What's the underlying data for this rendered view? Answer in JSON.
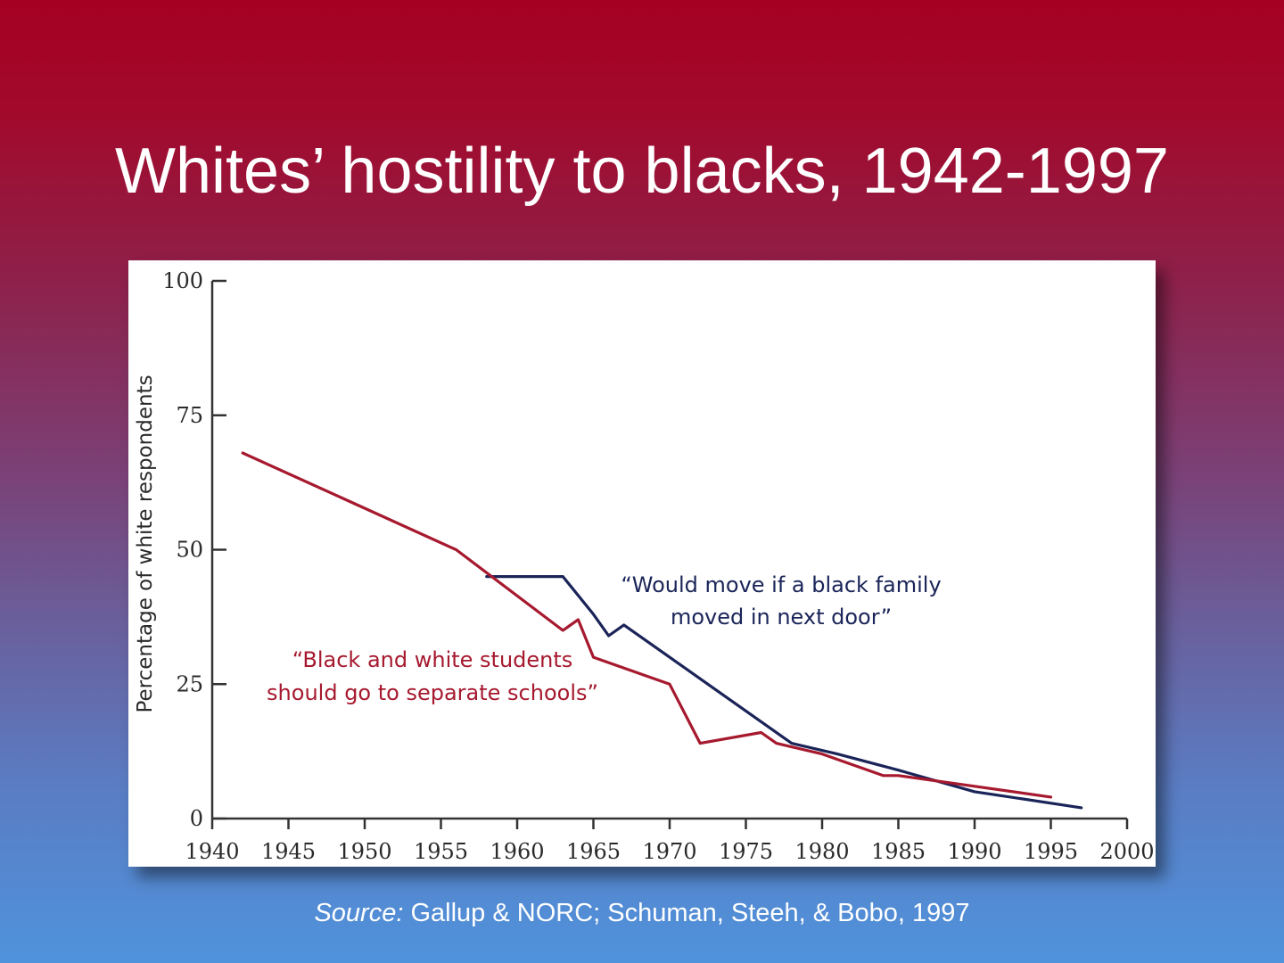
{
  "title": "Whites’ hostility to blacks, 1942-1997",
  "source": {
    "label": "Source:",
    "text": " Gallup & NORC; Schuman, Steeh, & Bobo, 1997"
  },
  "chart_data": {
    "type": "line",
    "ylabel": "Percentage of white respondents",
    "xlabel": "",
    "xlim": [
      1940,
      2000
    ],
    "ylim": [
      0,
      100
    ],
    "x_ticks": [
      "1940",
      "1945",
      "1950",
      "1955",
      "1960",
      "1965",
      "1970",
      "1975",
      "1980",
      "1985",
      "1990",
      "1995",
      "2000"
    ],
    "y_ticks": [
      "0",
      "25",
      "50",
      "75",
      "100"
    ],
    "grid": false,
    "series": [
      {
        "annotation": [
          "“Would move if a black family",
          "moved in next door”"
        ],
        "color": "#1a2458",
        "points": [
          [
            1958,
            45
          ],
          [
            1963,
            45
          ],
          [
            1965,
            38
          ],
          [
            1966,
            34
          ],
          [
            1967,
            36
          ],
          [
            1970,
            30
          ],
          [
            1974,
            22
          ],
          [
            1978,
            14
          ],
          [
            1981,
            12
          ],
          [
            1985,
            9
          ],
          [
            1990,
            5
          ],
          [
            1997,
            2
          ]
        ]
      },
      {
        "annotation": [
          "“Black and white students",
          "should go to separate schools”"
        ],
        "color": "#a6192e",
        "points": [
          [
            1942,
            68
          ],
          [
            1956,
            50
          ],
          [
            1963,
            35
          ],
          [
            1964,
            37
          ],
          [
            1965,
            30
          ],
          [
            1970,
            25
          ],
          [
            1972,
            14
          ],
          [
            1976,
            16
          ],
          [
            1977,
            14
          ],
          [
            1980,
            12
          ],
          [
            1984,
            8
          ],
          [
            1985,
            8
          ],
          [
            1990,
            6
          ],
          [
            1995,
            4
          ]
        ]
      }
    ]
  }
}
